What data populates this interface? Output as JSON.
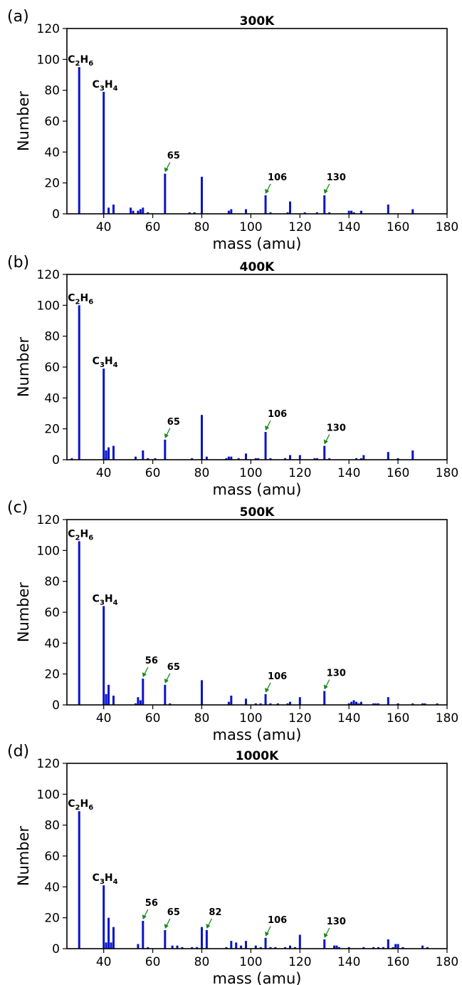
{
  "chart_data": [
    {
      "type": "bar",
      "panel_label": "(a)",
      "title": "300K",
      "xlabel": "mass (amu)",
      "ylabel": "Number",
      "xlim": [
        25,
        180
      ],
      "ylim": [
        0,
        120
      ],
      "xticks": [
        40,
        60,
        80,
        100,
        120,
        140,
        160,
        180
      ],
      "yticks": [
        0,
        20,
        40,
        60,
        80,
        100,
        120
      ],
      "legend": "none",
      "grid": false,
      "bar_color": "#0a14c8",
      "points": [
        [
          30,
          95
        ],
        [
          40,
          79
        ],
        [
          42,
          4
        ],
        [
          44,
          6
        ],
        [
          51,
          4
        ],
        [
          52,
          2
        ],
        [
          54,
          2
        ],
        [
          55,
          3
        ],
        [
          56,
          4
        ],
        [
          58,
          1
        ],
        [
          65,
          26
        ],
        [
          75,
          1
        ],
        [
          77,
          1
        ],
        [
          80,
          24
        ],
        [
          91,
          2
        ],
        [
          92,
          3
        ],
        [
          98,
          3
        ],
        [
          106,
          12
        ],
        [
          108,
          1
        ],
        [
          115,
          1
        ],
        [
          116,
          8
        ],
        [
          122,
          1
        ],
        [
          127,
          1
        ],
        [
          130,
          12
        ],
        [
          132,
          1
        ],
        [
          140,
          2
        ],
        [
          141,
          2
        ],
        [
          142,
          1
        ],
        [
          145,
          2
        ],
        [
          156,
          6
        ],
        [
          166,
          3
        ]
      ],
      "annotations": [
        {
          "text": "65",
          "x": 65,
          "y": 26
        },
        {
          "text": "106",
          "x": 106,
          "y": 12
        },
        {
          "text": "130",
          "x": 130,
          "y": 12
        }
      ],
      "species": [
        {
          "base": "C",
          "sub1": "2",
          "el2": "H",
          "sub2": "6",
          "x": 30,
          "y": 95
        },
        {
          "base": "C",
          "sub1": "3",
          "el2": "H",
          "sub2": "4",
          "x": 40,
          "y": 79
        }
      ]
    },
    {
      "type": "bar",
      "panel_label": "(b)",
      "title": "400K",
      "xlabel": "mass (amu)",
      "ylabel": "Number",
      "xlim": [
        25,
        180
      ],
      "ylim": [
        0,
        120
      ],
      "xticks": [
        40,
        60,
        80,
        100,
        120,
        140,
        160,
        180
      ],
      "yticks": [
        0,
        20,
        40,
        60,
        80,
        100,
        120
      ],
      "legend": "none",
      "grid": false,
      "bar_color": "#0a14c8",
      "points": [
        [
          27,
          1
        ],
        [
          30,
          100
        ],
        [
          40,
          59
        ],
        [
          41,
          6
        ],
        [
          42,
          8
        ],
        [
          44,
          9
        ],
        [
          53,
          2
        ],
        [
          56,
          6
        ],
        [
          58,
          1
        ],
        [
          61,
          1
        ],
        [
          65,
          13
        ],
        [
          76,
          1
        ],
        [
          80,
          29
        ],
        [
          82,
          2
        ],
        [
          90,
          1
        ],
        [
          91,
          2
        ],
        [
          92,
          2
        ],
        [
          95,
          1
        ],
        [
          98,
          4
        ],
        [
          102,
          1
        ],
        [
          103,
          1
        ],
        [
          106,
          18
        ],
        [
          108,
          1
        ],
        [
          114,
          1
        ],
        [
          116,
          3
        ],
        [
          120,
          3
        ],
        [
          126,
          1
        ],
        [
          127,
          1
        ],
        [
          130,
          9
        ],
        [
          132,
          1
        ],
        [
          143,
          1
        ],
        [
          145,
          1
        ],
        [
          146,
          3
        ],
        [
          156,
          5
        ],
        [
          160,
          1
        ],
        [
          166,
          6
        ]
      ],
      "annotations": [
        {
          "text": "65",
          "x": 65,
          "y": 13
        },
        {
          "text": "106",
          "x": 106,
          "y": 18
        },
        {
          "text": "130",
          "x": 130,
          "y": 9
        }
      ],
      "species": [
        {
          "base": "C",
          "sub1": "2",
          "el2": "H",
          "sub2": "6",
          "x": 30,
          "y": 100
        },
        {
          "base": "C",
          "sub1": "3",
          "el2": "H",
          "sub2": "4",
          "x": 40,
          "y": 59
        }
      ]
    },
    {
      "type": "bar",
      "panel_label": "(c)",
      "title": "500K",
      "xlabel": "mass (amu)",
      "ylabel": "Number",
      "xlim": [
        25,
        180
      ],
      "ylim": [
        0,
        120
      ],
      "xticks": [
        40,
        60,
        80,
        100,
        120,
        140,
        160,
        180
      ],
      "yticks": [
        0,
        20,
        40,
        60,
        80,
        100,
        120
      ],
      "legend": "none",
      "grid": false,
      "bar_color": "#0a14c8",
      "points": [
        [
          30,
          106
        ],
        [
          40,
          64
        ],
        [
          41,
          7
        ],
        [
          42,
          13
        ],
        [
          44,
          6
        ],
        [
          53,
          1
        ],
        [
          54,
          5
        ],
        [
          55,
          3
        ],
        [
          56,
          17
        ],
        [
          65,
          13
        ],
        [
          67,
          1
        ],
        [
          80,
          16
        ],
        [
          91,
          2
        ],
        [
          92,
          6
        ],
        [
          98,
          4
        ],
        [
          102,
          1
        ],
        [
          104,
          1
        ],
        [
          106,
          7
        ],
        [
          108,
          1
        ],
        [
          111,
          1
        ],
        [
          115,
          1
        ],
        [
          116,
          2
        ],
        [
          120,
          5
        ],
        [
          130,
          9
        ],
        [
          140,
          1
        ],
        [
          141,
          2
        ],
        [
          142,
          3
        ],
        [
          143,
          2
        ],
        [
          144,
          1
        ],
        [
          145,
          2
        ],
        [
          150,
          1
        ],
        [
          151,
          1
        ],
        [
          152,
          1
        ],
        [
          156,
          5
        ],
        [
          160,
          1
        ],
        [
          166,
          1
        ],
        [
          170,
          1
        ],
        [
          171,
          1
        ],
        [
          176,
          1
        ]
      ],
      "annotations": [
        {
          "text": "56",
          "x": 56,
          "y": 17
        },
        {
          "text": "65",
          "x": 65,
          "y": 13
        },
        {
          "text": "106",
          "x": 106,
          "y": 7
        },
        {
          "text": "130",
          "x": 130,
          "y": 9
        }
      ],
      "species": [
        {
          "base": "C",
          "sub1": "2",
          "el2": "H",
          "sub2": "6",
          "x": 30,
          "y": 106
        },
        {
          "base": "C",
          "sub1": "3",
          "el2": "H",
          "sub2": "4",
          "x": 40,
          "y": 64
        }
      ]
    },
    {
      "type": "bar",
      "panel_label": "(d)",
      "title": "1000K",
      "xlabel": "mass (amu)",
      "ylabel": "Number",
      "xlim": [
        25,
        180
      ],
      "ylim": [
        0,
        120
      ],
      "xticks": [
        40,
        60,
        80,
        100,
        120,
        140,
        160,
        180
      ],
      "yticks": [
        0,
        20,
        40,
        60,
        80,
        100,
        120
      ],
      "legend": "none",
      "grid": false,
      "bar_color": "#0a14c8",
      "points": [
        [
          30,
          89
        ],
        [
          40,
          41
        ],
        [
          41,
          4
        ],
        [
          42,
          20
        ],
        [
          43,
          4
        ],
        [
          44,
          14
        ],
        [
          54,
          3
        ],
        [
          56,
          18
        ],
        [
          58,
          1
        ],
        [
          65,
          12
        ],
        [
          68,
          2
        ],
        [
          70,
          2
        ],
        [
          72,
          1
        ],
        [
          76,
          1
        ],
        [
          78,
          1
        ],
        [
          80,
          14
        ],
        [
          82,
          12
        ],
        [
          90,
          1
        ],
        [
          92,
          5
        ],
        [
          94,
          4
        ],
        [
          96,
          2
        ],
        [
          98,
          5
        ],
        [
          102,
          2
        ],
        [
          104,
          1
        ],
        [
          106,
          7
        ],
        [
          108,
          1
        ],
        [
          110,
          1
        ],
        [
          114,
          1
        ],
        [
          116,
          2
        ],
        [
          118,
          1
        ],
        [
          120,
          9
        ],
        [
          130,
          6
        ],
        [
          134,
          2
        ],
        [
          135,
          2
        ],
        [
          136,
          1
        ],
        [
          140,
          1
        ],
        [
          146,
          1
        ],
        [
          150,
          1
        ],
        [
          152,
          1
        ],
        [
          154,
          1
        ],
        [
          156,
          6
        ],
        [
          158,
          1
        ],
        [
          159,
          3
        ],
        [
          160,
          3
        ],
        [
          162,
          1
        ],
        [
          170,
          2
        ],
        [
          172,
          1
        ]
      ],
      "annotations": [
        {
          "text": "56",
          "x": 56,
          "y": 18
        },
        {
          "text": "65",
          "x": 65,
          "y": 12
        },
        {
          "text": "82",
          "x": 82,
          "y": 12
        },
        {
          "text": "106",
          "x": 106,
          "y": 7
        },
        {
          "text": "130",
          "x": 130,
          "y": 6
        }
      ],
      "species": [
        {
          "base": "C",
          "sub1": "2",
          "el2": "H",
          "sub2": "6",
          "x": 30,
          "y": 89
        },
        {
          "base": "C",
          "sub1": "3",
          "el2": "H",
          "sub2": "4",
          "x": 40,
          "y": 41
        }
      ]
    }
  ]
}
